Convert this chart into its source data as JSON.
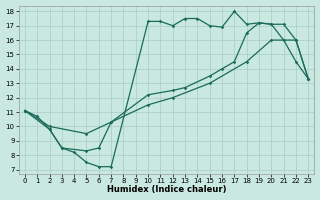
{
  "xlabel": "Humidex (Indice chaleur)",
  "bg_color": "#c8e8e0",
  "grid_color": "#a8ccc8",
  "line_color": "#1a6b5a",
  "xlim_min": -0.5,
  "xlim_max": 23.5,
  "ylim_min": 6.7,
  "ylim_max": 18.4,
  "xticks": [
    0,
    1,
    2,
    3,
    4,
    5,
    6,
    7,
    8,
    9,
    10,
    11,
    12,
    13,
    14,
    15,
    16,
    17,
    18,
    19,
    20,
    21,
    22,
    23
  ],
  "yticks": [
    7,
    8,
    9,
    10,
    11,
    12,
    13,
    14,
    15,
    16,
    17,
    18
  ],
  "series": [
    {
      "x": [
        0,
        1,
        2,
        3,
        4,
        5,
        6,
        7,
        10,
        11,
        12,
        13,
        14,
        15,
        16,
        17,
        18,
        19,
        20,
        21,
        22,
        23
      ],
      "y": [
        11.1,
        10.7,
        9.8,
        8.5,
        8.2,
        7.5,
        7.2,
        7.2,
        17.3,
        17.3,
        17.0,
        17.5,
        17.5,
        17.0,
        16.9,
        18.0,
        17.1,
        17.2,
        17.1,
        16.0,
        14.5,
        13.3
      ]
    },
    {
      "x": [
        0,
        2,
        3,
        5,
        6,
        7,
        10,
        12,
        13,
        15,
        16,
        17,
        18,
        19,
        20,
        21,
        22,
        23
      ],
      "y": [
        11.1,
        9.8,
        8.5,
        8.3,
        8.5,
        10.3,
        12.2,
        12.5,
        12.7,
        13.5,
        14.0,
        14.5,
        16.5,
        17.2,
        17.1,
        17.1,
        16.0,
        13.3
      ]
    },
    {
      "x": [
        0,
        2,
        5,
        7,
        10,
        12,
        15,
        18,
        20,
        22,
        23
      ],
      "y": [
        11.1,
        10.0,
        9.5,
        10.3,
        11.5,
        12.0,
        13.0,
        14.5,
        16.0,
        16.0,
        13.3
      ]
    }
  ]
}
